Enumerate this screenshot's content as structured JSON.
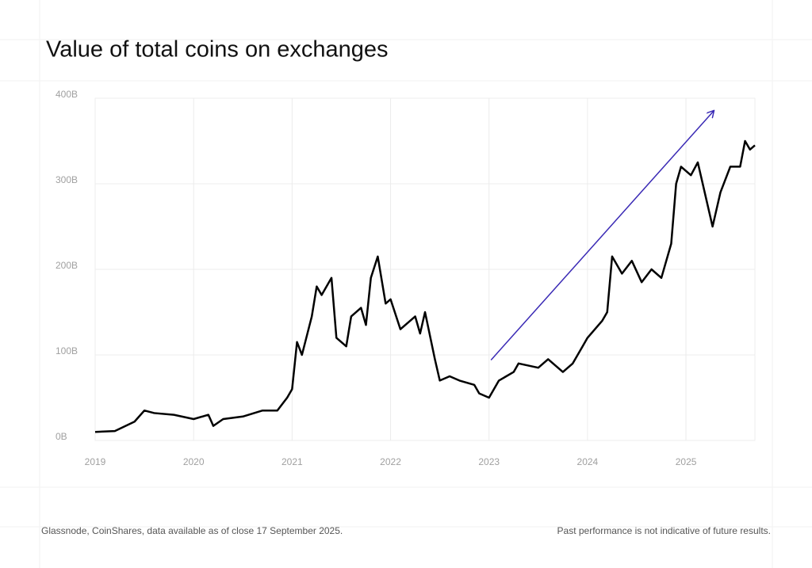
{
  "chart_data": {
    "type": "line",
    "title": "Value of total coins on exchanges",
    "source": "Glassnode, CoinShares, data available as of close 17 September 2025.",
    "disclaimer": "Past performance is not indicative of future results.",
    "xlim": [
      2019,
      2025.7
    ],
    "xticks": [
      2019,
      2020,
      2021,
      2022,
      2023,
      2024,
      2025
    ],
    "ylim": [
      0,
      400
    ],
    "yticks": [
      {
        "value": 0,
        "label": "0B"
      },
      {
        "value": 100,
        "label": "100B"
      },
      {
        "value": 200,
        "label": "200B"
      },
      {
        "value": 300,
        "label": "300B"
      },
      {
        "value": 400,
        "label": "400B"
      }
    ],
    "grid": true,
    "arrow": {
      "x": [
        2023.02,
        2025.28
      ],
      "y": [
        94,
        385
      ],
      "color": "#3a2ab5"
    },
    "series": [
      {
        "color": "#000000",
        "x": [
          2019.0,
          2019.2,
          2019.4,
          2019.5,
          2019.6,
          2019.8,
          2020.0,
          2020.15,
          2020.2,
          2020.3,
          2020.5,
          2020.7,
          2020.85,
          2020.95,
          2021.0,
          2021.05,
          2021.1,
          2021.2,
          2021.25,
          2021.3,
          2021.4,
          2021.45,
          2021.55,
          2021.6,
          2021.7,
          2021.75,
          2021.8,
          2021.87,
          2021.95,
          2022.0,
          2022.1,
          2022.15,
          2022.25,
          2022.3,
          2022.35,
          2022.45,
          2022.5,
          2022.6,
          2022.7,
          2022.85,
          2022.9,
          2023.0,
          2023.1,
          2023.25,
          2023.3,
          2023.5,
          2023.6,
          2023.75,
          2023.85,
          2023.95,
          2024.0,
          2024.15,
          2024.2,
          2024.25,
          2024.35,
          2024.45,
          2024.55,
          2024.65,
          2024.75,
          2024.85,
          2024.9,
          2024.95,
          2025.05,
          2025.12,
          2025.2,
          2025.27,
          2025.35,
          2025.45,
          2025.55,
          2025.6,
          2025.65,
          2025.7
        ],
        "values": [
          10,
          11,
          22,
          35,
          32,
          30,
          25,
          30,
          17,
          25,
          28,
          35,
          35,
          50,
          60,
          115,
          100,
          145,
          180,
          170,
          190,
          120,
          110,
          145,
          155,
          135,
          190,
          215,
          160,
          165,
          130,
          135,
          145,
          125,
          150,
          95,
          70,
          75,
          70,
          65,
          55,
          50,
          70,
          80,
          90,
          85,
          95,
          80,
          90,
          110,
          120,
          140,
          150,
          215,
          195,
          210,
          185,
          200,
          190,
          230,
          300,
          320,
          310,
          325,
          285,
          250,
          290,
          320,
          320,
          350,
          340,
          345
        ]
      }
    ]
  }
}
